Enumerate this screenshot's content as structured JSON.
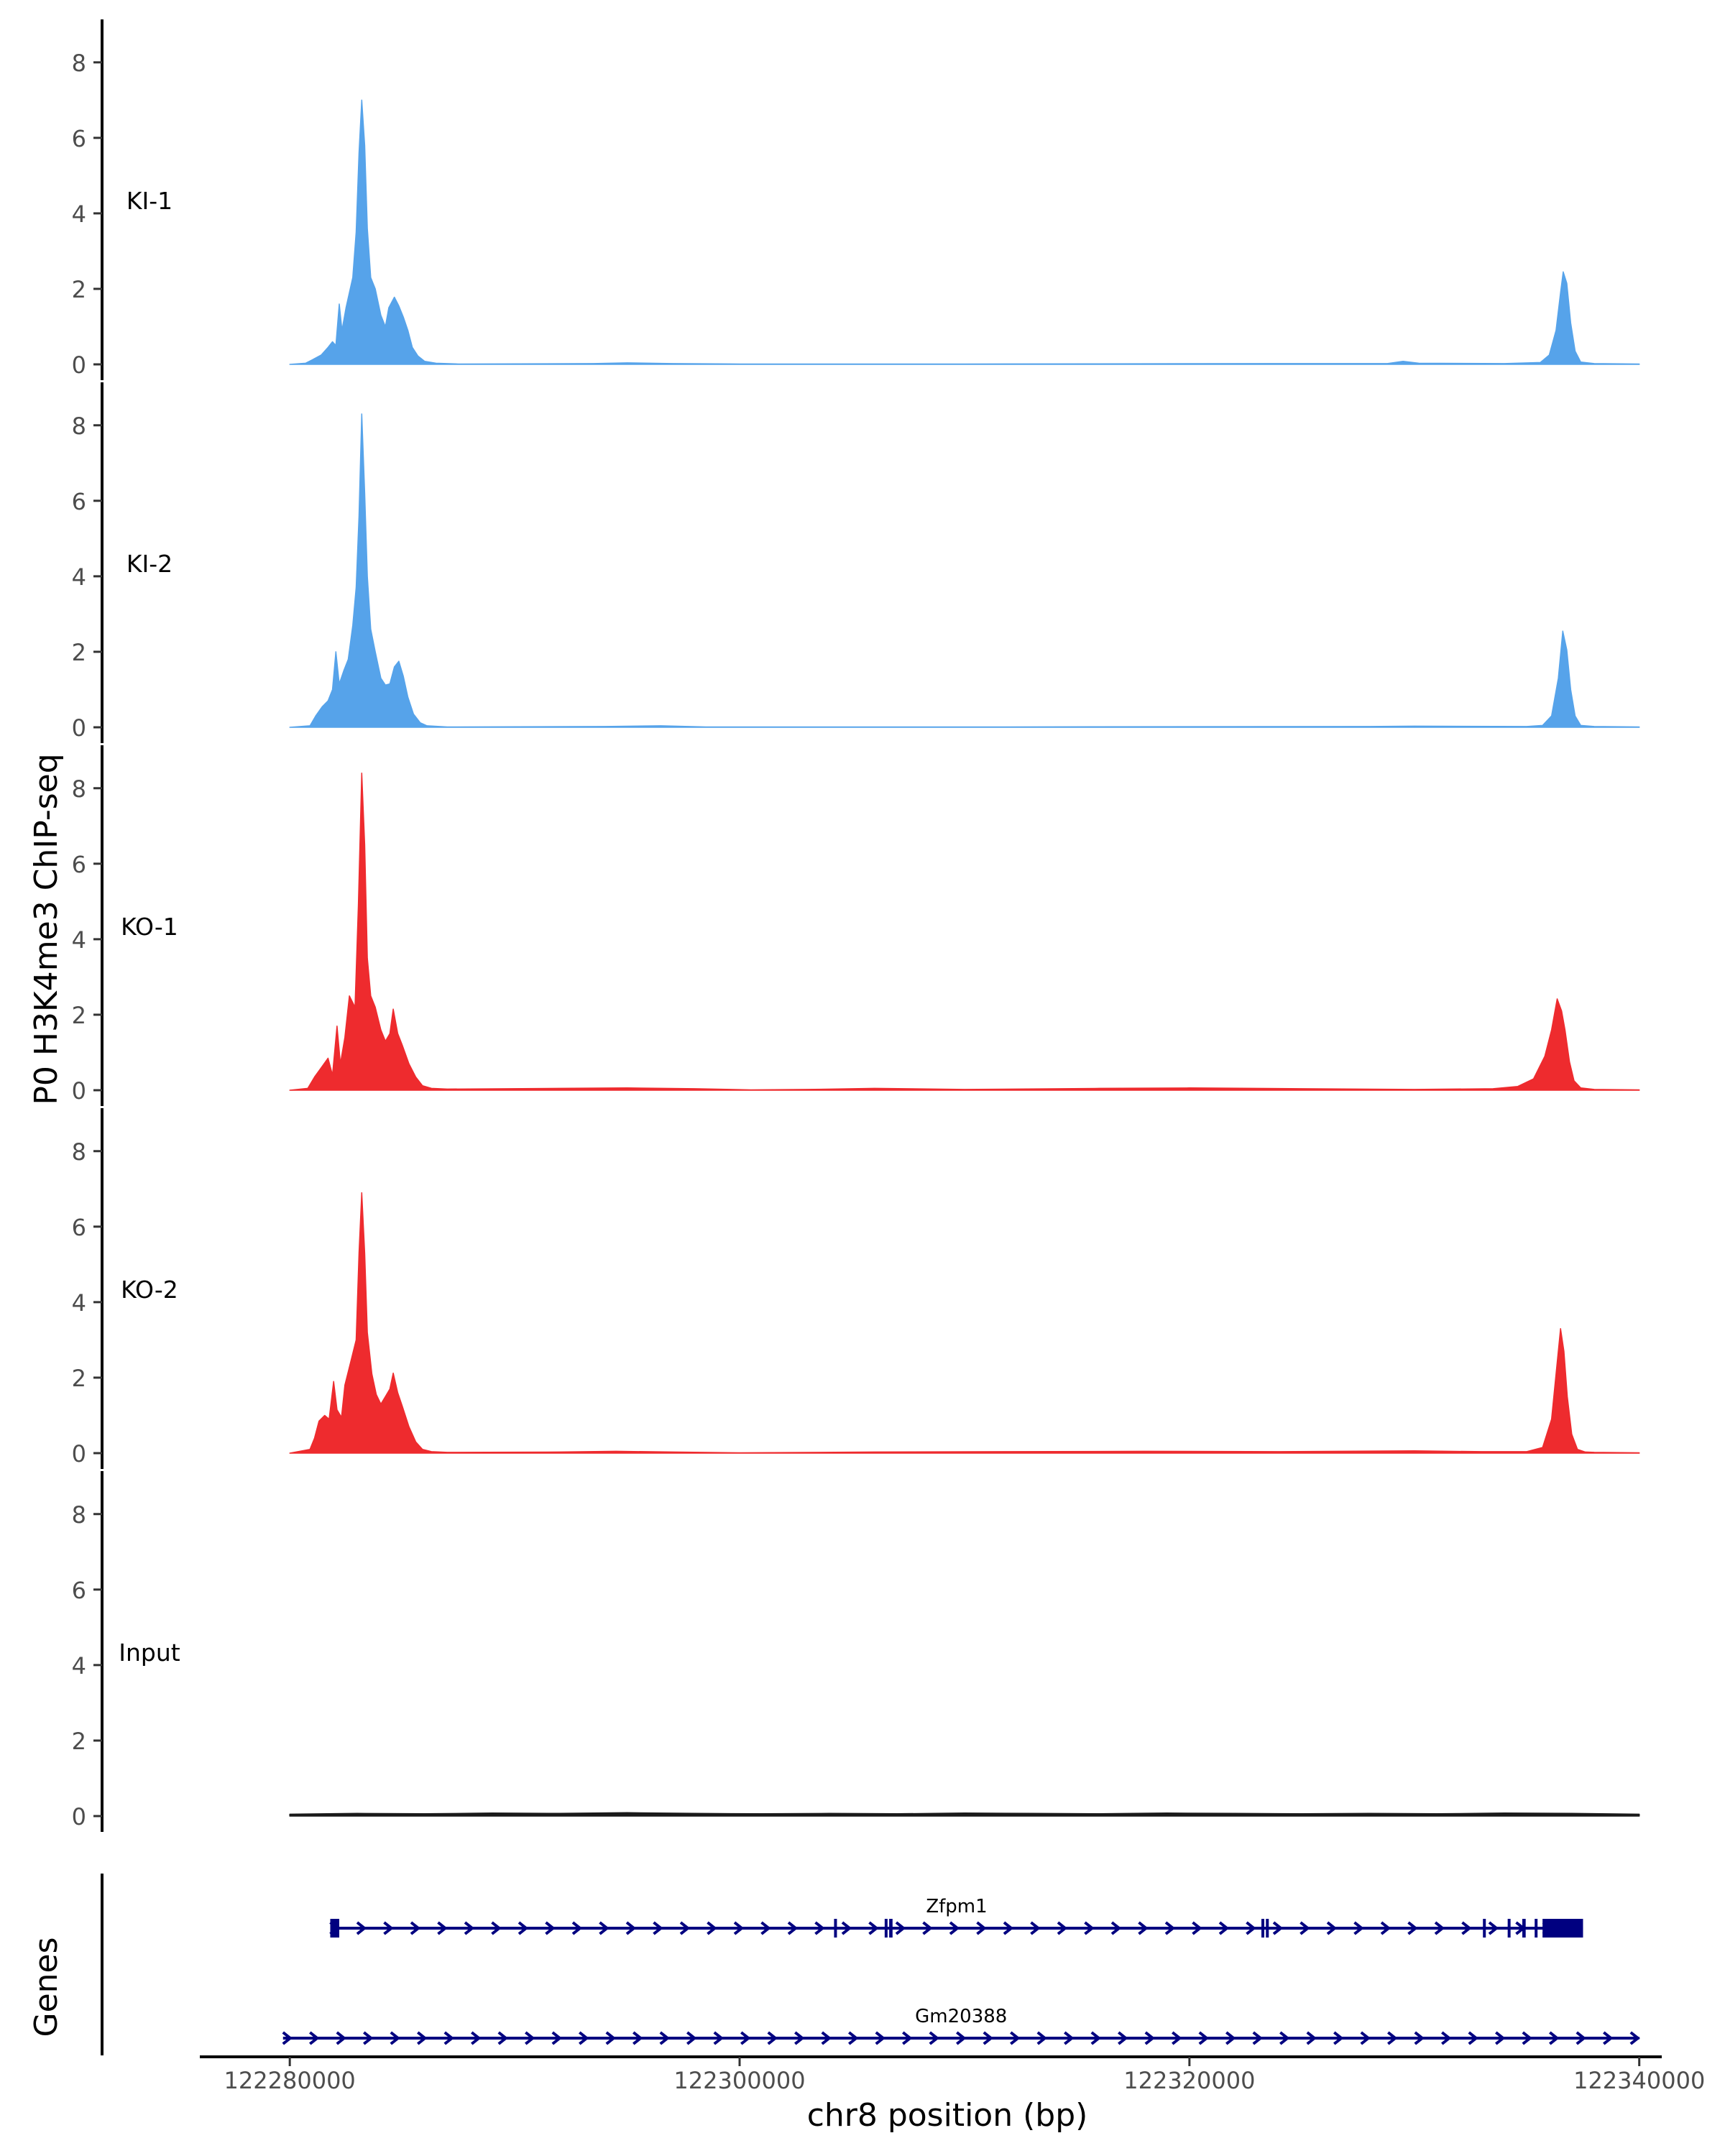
{
  "figure": {
    "ylabel": "P0 H3K4me3 ChIP-seq",
    "xlabel": "chr8 position (bp)",
    "genes_label": "Genes"
  },
  "chart_data": {
    "type": "area",
    "title": "",
    "ylabel": "P0 H3K4me3 ChIP-seq",
    "xlabel": "chr8 position (bp)",
    "xlim": [
      122276000,
      122341000
    ],
    "ylim": [
      0,
      8.7
    ],
    "yticks": [
      0,
      2,
      4,
      6,
      8
    ],
    "xticks": [
      122280000,
      122300000,
      122320000,
      122340000
    ],
    "xtick_labels": [
      "122280000",
      "122300000",
      "122320000",
      "122340000"
    ],
    "grid": false,
    "tracks": [
      {
        "name": "KI-1",
        "color": "#56a3ea",
        "points": [
          [
            122280000,
            0
          ],
          [
            122280700,
            0.03
          ],
          [
            122281000,
            0.12
          ],
          [
            122281400,
            0.25
          ],
          [
            122281700,
            0.45
          ],
          [
            122281900,
            0.6
          ],
          [
            122282050,
            0.5
          ],
          [
            122282200,
            1.6
          ],
          [
            122282320,
            0.9
          ],
          [
            122282500,
            1.5
          ],
          [
            122282800,
            2.3
          ],
          [
            122282950,
            3.5
          ],
          [
            122283080,
            5.6
          ],
          [
            122283200,
            7.0
          ],
          [
            122283330,
            5.8
          ],
          [
            122283450,
            3.6
          ],
          [
            122283600,
            2.3
          ],
          [
            122283800,
            2.0
          ],
          [
            122284050,
            1.3
          ],
          [
            122284250,
            1.0
          ],
          [
            122284400,
            1.5
          ],
          [
            122284650,
            1.78
          ],
          [
            122284850,
            1.55
          ],
          [
            122285050,
            1.25
          ],
          [
            122285250,
            0.9
          ],
          [
            122285450,
            0.45
          ],
          [
            122285700,
            0.22
          ],
          [
            122286000,
            0.08
          ],
          [
            122286500,
            0.03
          ],
          [
            122287500,
            0.01
          ],
          [
            122293500,
            0.02
          ],
          [
            122295000,
            0.04
          ],
          [
            122297000,
            0.02
          ],
          [
            122300000,
            0.01
          ],
          [
            122310000,
            0.01
          ],
          [
            122323500,
            0.02
          ],
          [
            122328800,
            0.02
          ],
          [
            122329500,
            0.08
          ],
          [
            122330200,
            0.03
          ],
          [
            122334000,
            0.02
          ],
          [
            122335600,
            0.05
          ],
          [
            122336000,
            0.25
          ],
          [
            122336300,
            0.9
          ],
          [
            122336500,
            1.9
          ],
          [
            122336620,
            2.45
          ],
          [
            122336780,
            2.15
          ],
          [
            122336950,
            1.1
          ],
          [
            122337150,
            0.35
          ],
          [
            122337400,
            0.06
          ],
          [
            122338000,
            0.02
          ],
          [
            122340000,
            0.01
          ]
        ]
      },
      {
        "name": "KI-2",
        "color": "#56a3ea",
        "points": [
          [
            122280000,
            0
          ],
          [
            122280900,
            0.04
          ],
          [
            122281150,
            0.3
          ],
          [
            122281450,
            0.55
          ],
          [
            122281700,
            0.7
          ],
          [
            122281900,
            1.0
          ],
          [
            122282050,
            2.0
          ],
          [
            122282200,
            1.15
          ],
          [
            122282400,
            1.5
          ],
          [
            122282600,
            1.8
          ],
          [
            122282800,
            2.7
          ],
          [
            122282950,
            3.7
          ],
          [
            122283080,
            5.6
          ],
          [
            122283200,
            8.3
          ],
          [
            122283330,
            6.2
          ],
          [
            122283450,
            4.0
          ],
          [
            122283600,
            2.6
          ],
          [
            122283800,
            2.0
          ],
          [
            122284050,
            1.3
          ],
          [
            122284250,
            1.12
          ],
          [
            122284450,
            1.15
          ],
          [
            122284650,
            1.6
          ],
          [
            122284850,
            1.75
          ],
          [
            122285050,
            1.35
          ],
          [
            122285250,
            0.8
          ],
          [
            122285500,
            0.35
          ],
          [
            122285800,
            0.12
          ],
          [
            122286100,
            0.04
          ],
          [
            122287000,
            0.01
          ],
          [
            122294000,
            0.02
          ],
          [
            122296500,
            0.04
          ],
          [
            122298500,
            0.01
          ],
          [
            122310000,
            0.01
          ],
          [
            122328000,
            0.02
          ],
          [
            122330000,
            0.03
          ],
          [
            122335000,
            0.02
          ],
          [
            122335700,
            0.05
          ],
          [
            122336100,
            0.3
          ],
          [
            122336400,
            1.3
          ],
          [
            122336600,
            2.55
          ],
          [
            122336780,
            2.05
          ],
          [
            122336950,
            1.0
          ],
          [
            122337150,
            0.3
          ],
          [
            122337400,
            0.05
          ],
          [
            122338000,
            0.02
          ],
          [
            122340000,
            0.01
          ]
        ]
      },
      {
        "name": "KO-1",
        "color": "#ee2b2e",
        "points": [
          [
            122280000,
            0
          ],
          [
            122280800,
            0.05
          ],
          [
            122281100,
            0.35
          ],
          [
            122281400,
            0.6
          ],
          [
            122281700,
            0.85
          ],
          [
            122281900,
            0.4
          ],
          [
            122282100,
            1.7
          ],
          [
            122282250,
            0.7
          ],
          [
            122282450,
            1.4
          ],
          [
            122282650,
            2.5
          ],
          [
            122282900,
            2.2
          ],
          [
            122283050,
            4.9
          ],
          [
            122283200,
            8.4
          ],
          [
            122283330,
            6.5
          ],
          [
            122283450,
            3.5
          ],
          [
            122283600,
            2.5
          ],
          [
            122283800,
            2.2
          ],
          [
            122284050,
            1.6
          ],
          [
            122284250,
            1.3
          ],
          [
            122284450,
            1.5
          ],
          [
            122284600,
            2.15
          ],
          [
            122284800,
            1.5
          ],
          [
            122285000,
            1.2
          ],
          [
            122285300,
            0.7
          ],
          [
            122285600,
            0.35
          ],
          [
            122285900,
            0.12
          ],
          [
            122286300,
            0.05
          ],
          [
            122287000,
            0.03
          ],
          [
            122292000,
            0.05
          ],
          [
            122295000,
            0.06
          ],
          [
            122298000,
            0.04
          ],
          [
            122300500,
            0.01
          ],
          [
            122303000,
            0.02
          ],
          [
            122306000,
            0.05
          ],
          [
            122310000,
            0.02
          ],
          [
            122316000,
            0.05
          ],
          [
            122320000,
            0.06
          ],
          [
            122325000,
            0.04
          ],
          [
            122330000,
            0.02
          ],
          [
            122333500,
            0.04
          ],
          [
            122334600,
            0.1
          ],
          [
            122335300,
            0.3
          ],
          [
            122335800,
            0.9
          ],
          [
            122336100,
            1.6
          ],
          [
            122336350,
            2.42
          ],
          [
            122336550,
            2.1
          ],
          [
            122336700,
            1.6
          ],
          [
            122336900,
            0.75
          ],
          [
            122337100,
            0.25
          ],
          [
            122337400,
            0.06
          ],
          [
            122338000,
            0.02
          ],
          [
            122340000,
            0.01
          ]
        ]
      },
      {
        "name": "KO-2",
        "color": "#ee2b2e",
        "points": [
          [
            122280000,
            0
          ],
          [
            122280900,
            0.1
          ],
          [
            122281100,
            0.4
          ],
          [
            122281300,
            0.85
          ],
          [
            122281550,
            1.0
          ],
          [
            122281750,
            0.9
          ],
          [
            122281950,
            1.9
          ],
          [
            122282100,
            1.15
          ],
          [
            122282300,
            0.95
          ],
          [
            122282450,
            1.8
          ],
          [
            122282700,
            2.4
          ],
          [
            122282950,
            3.0
          ],
          [
            122283080,
            5.3
          ],
          [
            122283200,
            6.9
          ],
          [
            122283330,
            5.3
          ],
          [
            122283450,
            3.2
          ],
          [
            122283650,
            2.1
          ],
          [
            122283850,
            1.55
          ],
          [
            122284050,
            1.3
          ],
          [
            122284250,
            1.5
          ],
          [
            122284450,
            1.7
          ],
          [
            122284600,
            2.12
          ],
          [
            122284800,
            1.6
          ],
          [
            122285000,
            1.25
          ],
          [
            122285300,
            0.7
          ],
          [
            122285600,
            0.3
          ],
          [
            122285900,
            0.1
          ],
          [
            122286300,
            0.04
          ],
          [
            122287000,
            0.02
          ],
          [
            122292000,
            0.03
          ],
          [
            122294500,
            0.05
          ],
          [
            122297000,
            0.03
          ],
          [
            122300000,
            0.01
          ],
          [
            122306000,
            0.03
          ],
          [
            122312000,
            0.04
          ],
          [
            122318000,
            0.05
          ],
          [
            122324000,
            0.04
          ],
          [
            122330000,
            0.06
          ],
          [
            122333000,
            0.04
          ],
          [
            122335000,
            0.04
          ],
          [
            122335700,
            0.15
          ],
          [
            122336100,
            0.9
          ],
          [
            122336350,
            2.4
          ],
          [
            122336500,
            3.3
          ],
          [
            122336650,
            2.7
          ],
          [
            122336800,
            1.5
          ],
          [
            122337000,
            0.5
          ],
          [
            122337250,
            0.1
          ],
          [
            122337600,
            0.03
          ],
          [
            122338000,
            0.02
          ],
          [
            122340000,
            0.01
          ]
        ]
      },
      {
        "name": "Input",
        "color": "#1a1a1a",
        "points": [
          [
            122280000,
            0.05
          ],
          [
            122283000,
            0.07
          ],
          [
            122286000,
            0.06
          ],
          [
            122289000,
            0.08
          ],
          [
            122292000,
            0.07
          ],
          [
            122295000,
            0.09
          ],
          [
            122298000,
            0.07
          ],
          [
            122301000,
            0.06
          ],
          [
            122304000,
            0.07
          ],
          [
            122307000,
            0.06
          ],
          [
            122310000,
            0.08
          ],
          [
            122313000,
            0.07
          ],
          [
            122316000,
            0.06
          ],
          [
            122319000,
            0.08
          ],
          [
            122322000,
            0.07
          ],
          [
            122325000,
            0.06
          ],
          [
            122328000,
            0.07
          ],
          [
            122331000,
            0.06
          ],
          [
            122334000,
            0.08
          ],
          [
            122337000,
            0.07
          ],
          [
            122340000,
            0.05
          ]
        ]
      }
    ],
    "genes": [
      {
        "name": "Zfpm1",
        "strand": "+",
        "color": "#000080",
        "start": 122281800,
        "end": 122337500,
        "exons": [
          [
            122281800,
            122282200
          ],
          [
            122304200,
            122304250
          ],
          [
            122306450,
            122306500
          ],
          [
            122306650,
            122306800
          ],
          [
            122323200,
            122323250
          ],
          [
            122323400,
            122323450
          ],
          [
            122333050,
            122333150
          ],
          [
            122334150,
            122334200
          ],
          [
            122334800,
            122334950
          ],
          [
            122335350,
            122335400
          ],
          [
            122335700,
            122337500
          ]
        ]
      },
      {
        "name": "Gm20388",
        "strand": "+",
        "color": "#000080",
        "start": 122279700,
        "end": 122340000,
        "exons": []
      }
    ]
  }
}
